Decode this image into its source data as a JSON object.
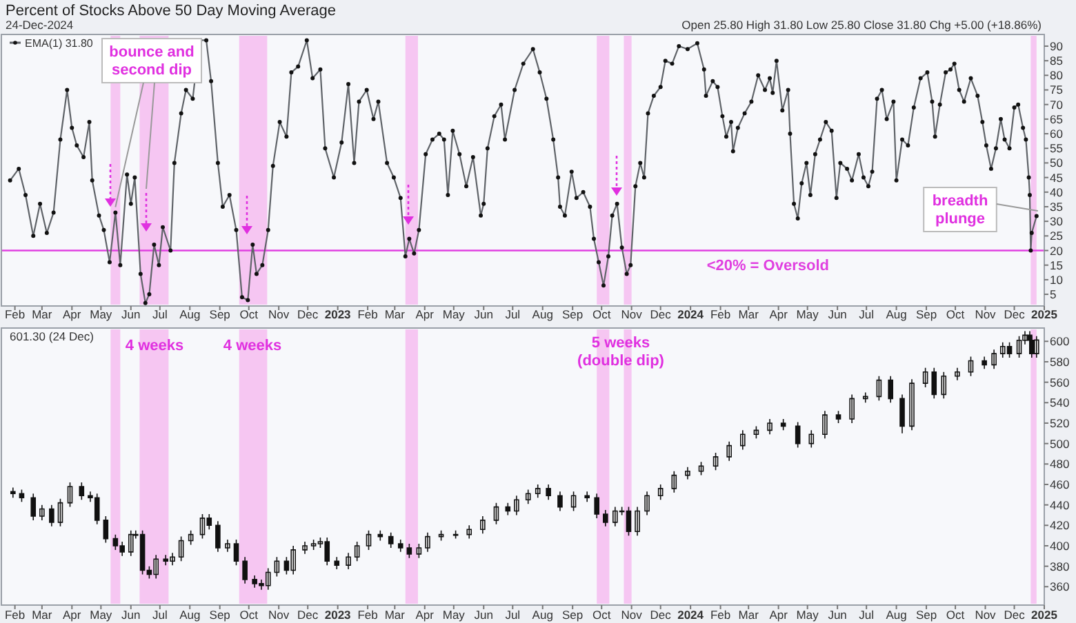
{
  "chart_data": [
    {
      "type": "line",
      "title": "Percent of Stocks Above 50 Day Moving Average",
      "subtitle": "24-Dec-2024",
      "annotations": [
        "Open 25.80 High 31.80 Low 25.80 Close 31.80 Chg +5.00 (+18.86%)",
        {
          "text": "bounce and second dip",
          "x": "2022-05-16",
          "y": 33
        },
        "breadth plunge"
      ],
      "legend": "top left",
      "marker": "circle",
      "xlim": [
        "2022-01-18",
        "2025-01-01"
      ],
      "ylim": [
        1,
        94
      ],
      "yticks": [
        5,
        10,
        15,
        20,
        25,
        30,
        35,
        40,
        45,
        50,
        55,
        60,
        65,
        70,
        75,
        80,
        85,
        90
      ],
      "xticks": [
        {
          "value": "2022-02",
          "label": "Feb"
        },
        {
          "value": "2022-03",
          "label": "Mar"
        },
        {
          "value": "2022-04",
          "label": "Apr"
        },
        {
          "value": "2022-05",
          "label": "May"
        },
        {
          "value": "2022-06",
          "label": "Jun"
        },
        {
          "value": "2022-07",
          "label": "Jul"
        },
        {
          "value": "2022-08",
          "label": "Aug"
        },
        {
          "value": "2022-09",
          "label": "Sep"
        },
        {
          "value": "2022-10",
          "label": "Oct"
        },
        {
          "value": "2022-11",
          "label": "Nov"
        },
        {
          "value": "2022-12",
          "label": "Dec"
        },
        {
          "value": "2023-01",
          "label": "2023"
        },
        {
          "value": "2023-02",
          "label": "Feb"
        },
        {
          "value": "2023-03",
          "label": "Mar"
        },
        {
          "value": "2023-04",
          "label": "Apr"
        },
        {
          "value": "2023-05",
          "label": "May"
        },
        {
          "value": "2023-06",
          "label": "Jun"
        },
        {
          "value": "2023-07",
          "label": "Jul"
        },
        {
          "value": "2023-08",
          "label": "Aug"
        },
        {
          "value": "2023-09",
          "label": "Sep"
        },
        {
          "value": "2023-10",
          "label": "Oct"
        },
        {
          "value": "2023-11",
          "label": "Nov"
        },
        {
          "value": "2023-12",
          "label": "Dec"
        },
        {
          "value": "2024-01",
          "label": "2024"
        },
        {
          "value": "2024-02",
          "label": "Feb"
        },
        {
          "value": "2024-03",
          "label": "Mar"
        },
        {
          "value": "2024-04",
          "label": "Apr"
        },
        {
          "value": "2024-05",
          "label": "May"
        },
        {
          "value": "2024-06",
          "label": "Jun"
        },
        {
          "value": "2024-07",
          "label": "Jul"
        },
        {
          "value": "2024-08",
          "label": "Aug"
        },
        {
          "value": "2024-09",
          "label": "Sep"
        },
        {
          "value": "2024-10",
          "label": "Oct"
        },
        {
          "value": "2024-11",
          "label": "Nov"
        },
        {
          "value": "2024-12",
          "label": "Dec"
        },
        {
          "value": "2025-01",
          "label": "2025"
        }
      ],
      "ref_lines": [
        {
          "axis": "y",
          "value": 20,
          "label": "<20% = Oversold",
          "color": "#e040e0"
        }
      ],
      "bands": [
        {
          "axis": "x",
          "from": "2022-05-11",
          "to": "2022-05-21",
          "color": "#f6c6f2"
        },
        {
          "axis": "x",
          "from": "2022-06-10",
          "to": "2022-07-10",
          "color": "#f6c6f2"
        },
        {
          "axis": "x",
          "from": "2022-09-21",
          "to": "2022-10-20",
          "color": "#f6c6f2"
        },
        {
          "axis": "x",
          "from": "2023-03-12",
          "to": "2023-03-25",
          "color": "#f6c6f2"
        },
        {
          "axis": "x",
          "from": "2023-09-26",
          "to": "2023-10-09",
          "color": "#f6c6f2"
        },
        {
          "axis": "x",
          "from": "2023-10-24",
          "to": "2023-11-01",
          "color": "#f6c6f2"
        },
        {
          "axis": "x",
          "from": "2024-12-18",
          "to": "2024-12-24",
          "color": "#f6c6f2"
        }
      ],
      "x": [
        "2022-01-27",
        "2022-02-05",
        "2022-02-12",
        "2022-02-20",
        "2022-02-27",
        "2022-03-06",
        "2022-03-13",
        "2022-03-20",
        "2022-03-27",
        "2022-04-01",
        "2022-04-06",
        "2022-04-13",
        "2022-04-19",
        "2022-04-22",
        "2022-04-29",
        "2022-05-04",
        "2022-05-10",
        "2022-05-16",
        "2022-05-21",
        "2022-05-28",
        "2022-06-01",
        "2022-06-05",
        "2022-06-11",
        "2022-06-16",
        "2022-06-20",
        "2022-06-25",
        "2022-06-30",
        "2022-07-04",
        "2022-07-12",
        "2022-07-16",
        "2022-07-23",
        "2022-07-28",
        "2022-08-04",
        "2022-08-11",
        "2022-08-18",
        "2022-08-23",
        "2022-08-30",
        "2022-09-04",
        "2022-09-11",
        "2022-09-18",
        "2022-09-24",
        "2022-09-30",
        "2022-10-05",
        "2022-10-09",
        "2022-10-15",
        "2022-10-21",
        "2022-10-26",
        "2022-11-02",
        "2022-11-09",
        "2022-11-14",
        "2022-11-21",
        "2022-11-30",
        "2022-12-06",
        "2022-12-14",
        "2022-12-19",
        "2022-12-28",
        "2023-01-05",
        "2023-01-12",
        "2023-01-18",
        "2023-01-23",
        "2023-01-31",
        "2023-02-07",
        "2023-02-12",
        "2023-02-21",
        "2023-02-28",
        "2023-03-07",
        "2023-03-12",
        "2023-03-16",
        "2023-03-21",
        "2023-03-26",
        "2023-04-02",
        "2023-04-09",
        "2023-04-16",
        "2023-04-21",
        "2023-04-25",
        "2023-04-30",
        "2023-05-07",
        "2023-05-14",
        "2023-05-21",
        "2023-05-29",
        "2023-06-01",
        "2023-06-05",
        "2023-06-12",
        "2023-06-19",
        "2023-06-23",
        "2023-07-03",
        "2023-07-12",
        "2023-07-22",
        "2023-07-29",
        "2023-08-05",
        "2023-08-12",
        "2023-08-17",
        "2023-08-19",
        "2023-08-24",
        "2023-08-31",
        "2023-09-05",
        "2023-09-12",
        "2023-09-19",
        "2023-09-23",
        "2023-09-28",
        "2023-10-03",
        "2023-10-08",
        "2023-10-12",
        "2023-10-17",
        "2023-10-22",
        "2023-10-27",
        "2023-10-31",
        "2023-11-05",
        "2023-11-10",
        "2023-11-14",
        "2023-11-18",
        "2023-11-24",
        "2023-12-01",
        "2023-12-06",
        "2023-12-13",
        "2023-12-20",
        "2023-12-29",
        "2024-01-08",
        "2024-01-15",
        "2024-01-17",
        "2024-01-24",
        "2024-01-29",
        "2024-02-03",
        "2024-02-07",
        "2024-02-12",
        "2024-02-14",
        "2024-02-19",
        "2024-02-26",
        "2024-03-04",
        "2024-03-11",
        "2024-03-18",
        "2024-03-23",
        "2024-03-26",
        "2024-03-30",
        "2024-04-05",
        "2024-04-11",
        "2024-04-13",
        "2024-04-17",
        "2024-04-21",
        "2024-04-25",
        "2024-04-30",
        "2024-05-04",
        "2024-05-09",
        "2024-05-14",
        "2024-05-20",
        "2024-05-26",
        "2024-05-31",
        "2024-06-04",
        "2024-06-11",
        "2024-06-16",
        "2024-06-23",
        "2024-06-28",
        "2024-07-03",
        "2024-07-07",
        "2024-07-12",
        "2024-07-17",
        "2024-07-22",
        "2024-07-29",
        "2024-08-01",
        "2024-08-07",
        "2024-08-13",
        "2024-08-19",
        "2024-08-26",
        "2024-09-02",
        "2024-09-07",
        "2024-09-10",
        "2024-09-15",
        "2024-09-21",
        "2024-09-26",
        "2024-09-30",
        "2024-10-05",
        "2024-10-10",
        "2024-10-17",
        "2024-10-24",
        "2024-10-29",
        "2024-11-02",
        "2024-11-07",
        "2024-11-12",
        "2024-11-17",
        "2024-11-21",
        "2024-11-26",
        "2024-12-01",
        "2024-12-05",
        "2024-12-10",
        "2024-12-13",
        "2024-12-16",
        "2024-12-17",
        "2024-12-18",
        "2024-12-19",
        "2024-12-24"
      ],
      "series": [
        {
          "name": "EMA(1) 31.80",
          "color": "#5f6368",
          "values": [
            44,
            48,
            39,
            25,
            36,
            26,
            33,
            58,
            75,
            62,
            56,
            52,
            64,
            44,
            32,
            27,
            16,
            33,
            15,
            46,
            36,
            45,
            12,
            2,
            5,
            22,
            15,
            28,
            20,
            50,
            67,
            75,
            72,
            92,
            92,
            78,
            50,
            35,
            39,
            27,
            4,
            3,
            22,
            12,
            15,
            27,
            49,
            64,
            59,
            81,
            83,
            92,
            79,
            82,
            55,
            45,
            57,
            77,
            50,
            71,
            75,
            65,
            71,
            50,
            45,
            38,
            18,
            24,
            19,
            27,
            53,
            58,
            60,
            58,
            39,
            61,
            53,
            42,
            52,
            32,
            36,
            55,
            66,
            70,
            58,
            75,
            84,
            89,
            81,
            72,
            58,
            45,
            35,
            32,
            47,
            38,
            40,
            35,
            24,
            16,
            8,
            18,
            32,
            36,
            21,
            12,
            15,
            42,
            50,
            45,
            67,
            73,
            76,
            85,
            84,
            90,
            89,
            91,
            82,
            73,
            78,
            76,
            66,
            59,
            64,
            54,
            62,
            67,
            71,
            80,
            75,
            79,
            74,
            85,
            68,
            75,
            60,
            36,
            31,
            43,
            50,
            39,
            53,
            58,
            64,
            61,
            38,
            50,
            48,
            44,
            53,
            45,
            42,
            47,
            72,
            75,
            65,
            71,
            44,
            58,
            56,
            69,
            79,
            81,
            71,
            59,
            70,
            81,
            82,
            84,
            75,
            71,
            79,
            73,
            64,
            56,
            48,
            55,
            65,
            58,
            55,
            69,
            70,
            62,
            58,
            45,
            39,
            20,
            26,
            31.8
          ]
        }
      ]
    },
    {
      "type": "candlestick",
      "annotations": [
        "601.30 (24 Dec)",
        "4 weeks",
        "4 weeks",
        "5 weeks (double dip)"
      ],
      "xlim": [
        "2022-01-18",
        "2025-01-01"
      ],
      "ylim": [
        342,
        613
      ],
      "yticks": [
        360,
        380,
        400,
        420,
        440,
        460,
        480,
        500,
        520,
        540,
        560,
        580,
        600
      ],
      "xticks": [
        {
          "value": "2022-02",
          "label": "Feb"
        },
        {
          "value": "2022-03",
          "label": "Mar"
        },
        {
          "value": "2022-04",
          "label": "Apr"
        },
        {
          "value": "2022-05",
          "label": "May"
        },
        {
          "value": "2022-06",
          "label": "Jun"
        },
        {
          "value": "2022-07",
          "label": "Jul"
        },
        {
          "value": "2022-08",
          "label": "Aug"
        },
        {
          "value": "2022-09",
          "label": "Sep"
        },
        {
          "value": "2022-10",
          "label": "Oct"
        },
        {
          "value": "2022-11",
          "label": "Nov"
        },
        {
          "value": "2022-12",
          "label": "Dec"
        },
        {
          "value": "2023-01",
          "label": "2023"
        },
        {
          "value": "2023-02",
          "label": "Feb"
        },
        {
          "value": "2023-03",
          "label": "Mar"
        },
        {
          "value": "2023-04",
          "label": "Apr"
        },
        {
          "value": "2023-05",
          "label": "May"
        },
        {
          "value": "2023-06",
          "label": "Jun"
        },
        {
          "value": "2023-07",
          "label": "Jul"
        },
        {
          "value": "2023-08",
          "label": "Aug"
        },
        {
          "value": "2023-09",
          "label": "Sep"
        },
        {
          "value": "2023-10",
          "label": "Oct"
        },
        {
          "value": "2023-11",
          "label": "Nov"
        },
        {
          "value": "2023-12",
          "label": "Dec"
        },
        {
          "value": "2024-01",
          "label": "2024"
        },
        {
          "value": "2024-02",
          "label": "Feb"
        },
        {
          "value": "2024-03",
          "label": "Mar"
        },
        {
          "value": "2024-04",
          "label": "Apr"
        },
        {
          "value": "2024-05",
          "label": "May"
        },
        {
          "value": "2024-06",
          "label": "Jun"
        },
        {
          "value": "2024-07",
          "label": "Jul"
        },
        {
          "value": "2024-08",
          "label": "Aug"
        },
        {
          "value": "2024-09",
          "label": "Sep"
        },
        {
          "value": "2024-10",
          "label": "Oct"
        },
        {
          "value": "2024-11",
          "label": "Nov"
        },
        {
          "value": "2024-12",
          "label": "Dec"
        },
        {
          "value": "2025-01",
          "label": "2025"
        }
      ],
      "bands": [
        {
          "axis": "x",
          "from": "2022-05-11",
          "to": "2022-05-21",
          "color": "#f6c6f2"
        },
        {
          "axis": "x",
          "from": "2022-06-10",
          "to": "2022-07-10",
          "color": "#f6c6f2"
        },
        {
          "axis": "x",
          "from": "2022-09-21",
          "to": "2022-10-20",
          "color": "#f6c6f2"
        },
        {
          "axis": "x",
          "from": "2023-03-12",
          "to": "2023-03-25",
          "color": "#f6c6f2"
        },
        {
          "axis": "x",
          "from": "2023-09-26",
          "to": "2023-10-09",
          "color": "#f6c6f2"
        },
        {
          "axis": "x",
          "from": "2023-10-24",
          "to": "2023-11-01",
          "color": "#f6c6f2"
        },
        {
          "axis": "x",
          "from": "2024-12-18",
          "to": "2024-12-24",
          "color": "#f6c6f2"
        }
      ],
      "x": [
        "2022-01-30",
        "2022-02-08",
        "2022-02-20",
        "2022-03-01",
        "2022-03-11",
        "2022-03-20",
        "2022-03-30",
        "2022-04-11",
        "2022-04-20",
        "2022-04-27",
        "2022-05-06",
        "2022-05-16",
        "2022-05-23",
        "2022-06-01",
        "2022-06-06",
        "2022-06-13",
        "2022-06-20",
        "2022-06-27",
        "2022-07-07",
        "2022-07-14",
        "2022-07-23",
        "2022-08-02",
        "2022-08-14",
        "2022-08-21",
        "2022-08-30",
        "2022-09-09",
        "2022-09-18",
        "2022-09-27",
        "2022-10-07",
        "2022-10-14",
        "2022-10-21",
        "2022-10-30",
        "2022-11-09",
        "2022-11-16",
        "2022-11-28",
        "2022-12-07",
        "2022-12-14",
        "2022-12-21",
        "2022-12-31",
        "2023-01-12",
        "2023-01-21",
        "2023-02-02",
        "2023-02-14",
        "2023-02-25",
        "2023-03-07",
        "2023-03-16",
        "2023-03-26",
        "2023-04-04",
        "2023-04-18",
        "2023-05-03",
        "2023-05-17",
        "2023-05-31",
        "2023-06-14",
        "2023-06-26",
        "2023-07-05",
        "2023-07-17",
        "2023-07-27",
        "2023-08-07",
        "2023-08-19",
        "2023-09-02",
        "2023-09-16",
        "2023-09-26",
        "2023-10-05",
        "2023-10-15",
        "2023-10-22",
        "2023-10-29",
        "2023-11-07",
        "2023-11-17",
        "2023-12-01",
        "2023-12-15",
        "2023-12-29",
        "2024-01-12",
        "2024-01-27",
        "2024-02-10",
        "2024-02-24",
        "2024-03-09",
        "2024-03-23",
        "2024-04-06",
        "2024-04-21",
        "2024-05-05",
        "2024-05-19",
        "2024-06-02",
        "2024-06-16",
        "2024-06-30",
        "2024-07-14",
        "2024-07-26",
        "2024-08-07",
        "2024-08-17",
        "2024-08-31",
        "2024-09-09",
        "2024-09-19",
        "2024-10-03",
        "2024-10-17",
        "2024-10-31",
        "2024-11-10",
        "2024-11-19",
        "2024-11-26",
        "2024-12-06",
        "2024-12-12",
        "2024-12-17",
        "2024-12-19",
        "2024-12-24"
      ],
      "ohlc": [
        [
          453,
          457,
          447,
          451
        ],
        [
          451,
          455,
          443,
          447
        ],
        [
          447,
          451,
          425,
          429
        ],
        [
          429,
          440,
          425,
          436
        ],
        [
          436,
          440,
          419,
          423
        ],
        [
          423,
          446,
          419,
          442
        ],
        [
          442,
          462,
          438,
          458
        ],
        [
          458,
          462,
          445,
          449
        ],
        [
          449,
          453,
          443,
          447
        ],
        [
          447,
          451,
          421,
          425
        ],
        [
          425,
          429,
          403,
          407
        ],
        [
          407,
          411,
          396,
          400
        ],
        [
          400,
          404,
          390,
          394
        ],
        [
          394,
          415,
          390,
          411
        ],
        [
          411,
          415,
          407,
          411
        ],
        [
          411,
          415,
          372,
          376
        ],
        [
          376,
          380,
          368,
          372
        ],
        [
          372,
          391,
          368,
          387
        ],
        [
          387,
          391,
          381,
          385
        ],
        [
          385,
          393,
          381,
          389
        ],
        [
          389,
          409,
          385,
          405
        ],
        [
          405,
          415,
          401,
          411
        ],
        [
          411,
          431,
          407,
          427
        ],
        [
          427,
          431,
          416,
          420
        ],
        [
          420,
          424,
          394,
          398
        ],
        [
          398,
          406,
          394,
          402
        ],
        [
          402,
          406,
          381,
          385
        ],
        [
          385,
          389,
          363,
          367
        ],
        [
          367,
          371,
          359,
          363
        ],
        [
          363,
          367,
          357,
          361
        ],
        [
          361,
          378,
          357,
          374
        ],
        [
          374,
          389,
          370,
          385
        ],
        [
          385,
          389,
          372,
          376
        ],
        [
          376,
          400,
          372,
          396
        ],
        [
          396,
          404,
          392,
          400
        ],
        [
          400,
          406,
          396,
          402
        ],
        [
          402,
          408,
          398,
          404
        ],
        [
          404,
          408,
          381,
          385
        ],
        [
          385,
          389,
          377,
          381
        ],
        [
          381,
          393,
          377,
          389
        ],
        [
          389,
          404,
          385,
          400
        ],
        [
          400,
          415,
          396,
          411
        ],
        [
          411,
          415,
          405,
          409
        ],
        [
          409,
          413,
          398,
          402
        ],
        [
          402,
          406,
          394,
          398
        ],
        [
          398,
          402,
          388,
          392
        ],
        [
          392,
          402,
          388,
          398
        ],
        [
          398,
          413,
          394,
          409
        ],
        [
          409,
          415,
          405,
          411
        ],
        [
          411,
          415,
          407,
          411
        ],
        [
          411,
          420,
          407,
          416
        ],
        [
          416,
          429,
          412,
          425
        ],
        [
          425,
          442,
          421,
          438
        ],
        [
          438,
          442,
          430,
          434
        ],
        [
          434,
          449,
          430,
          445
        ],
        [
          445,
          455,
          441,
          451
        ],
        [
          451,
          460,
          447,
          456
        ],
        [
          456,
          460,
          445,
          449
        ],
        [
          449,
          453,
          434,
          438
        ],
        [
          438,
          453,
          434,
          449
        ],
        [
          449,
          453,
          443,
          447
        ],
        [
          447,
          451,
          427,
          431
        ],
        [
          431,
          435,
          419,
          423
        ],
        [
          423,
          438,
          419,
          434
        ],
        [
          434,
          438,
          430,
          434
        ],
        [
          434,
          438,
          410,
          414
        ],
        [
          414,
          438,
          410,
          434
        ],
        [
          434,
          453,
          430,
          449
        ],
        [
          449,
          460,
          445,
          456
        ],
        [
          456,
          473,
          452,
          469
        ],
        [
          469,
          477,
          465,
          473
        ],
        [
          473,
          482,
          469,
          478
        ],
        [
          478,
          491,
          474,
          487
        ],
        [
          487,
          502,
          483,
          498
        ],
        [
          498,
          513,
          494,
          509
        ],
        [
          509,
          517,
          505,
          513
        ],
        [
          513,
          524,
          509,
          520
        ],
        [
          520,
          524,
          513,
          517
        ],
        [
          517,
          521,
          496,
          500
        ],
        [
          500,
          513,
          496,
          509
        ],
        [
          509,
          532,
          505,
          528
        ],
        [
          528,
          532,
          520,
          524
        ],
        [
          524,
          548,
          520,
          544
        ],
        [
          544,
          550,
          540,
          546
        ],
        [
          546,
          566,
          542,
          562
        ],
        [
          562,
          566,
          540,
          544
        ],
        [
          544,
          548,
          510,
          517
        ],
        [
          517,
          563,
          513,
          559
        ],
        [
          559,
          574,
          555,
          570
        ],
        [
          570,
          574,
          544,
          548
        ],
        [
          548,
          570,
          544,
          566
        ],
        [
          566,
          574,
          562,
          570
        ],
        [
          570,
          585,
          566,
          581
        ],
        [
          581,
          585,
          573,
          577
        ],
        [
          577,
          592,
          573,
          588
        ],
        [
          588,
          599,
          584,
          595
        ],
        [
          595,
          599,
          584,
          588
        ],
        [
          588,
          605,
          584,
          601
        ],
        [
          601,
          610,
          597,
          606
        ],
        [
          606,
          610,
          597,
          601
        ],
        [
          601,
          605,
          584,
          588
        ],
        [
          588,
          605,
          584,
          601.3
        ]
      ]
    }
  ]
}
